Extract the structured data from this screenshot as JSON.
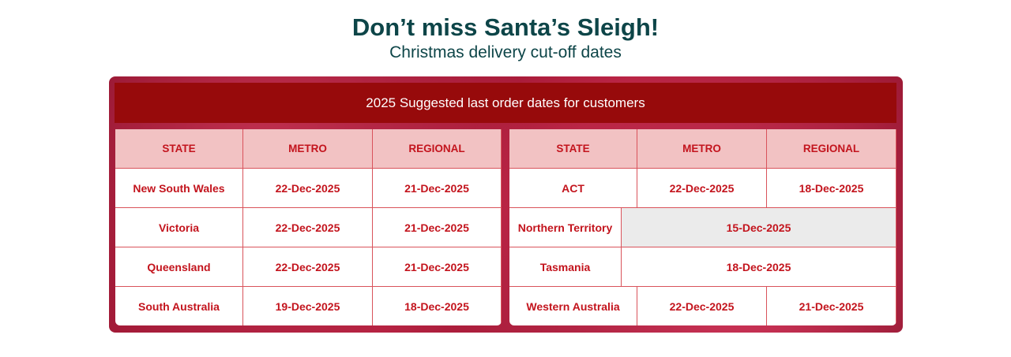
{
  "title": "Don’t miss Santa’s Sleigh!",
  "subtitle": "Christmas delivery cut-off dates",
  "banner": "2025 Suggested last order dates for customers",
  "headers": [
    "STATE",
    "METRO",
    "REGIONAL"
  ],
  "left_rows": [
    [
      "New South Wales",
      "22-Dec-2025",
      "21-Dec-2025"
    ],
    [
      "Victoria",
      "22-Dec-2025",
      "21-Dec-2025"
    ],
    [
      "Queensland",
      "22-Dec-2025",
      "21-Dec-2025"
    ],
    [
      "South Australia",
      "19-Dec-2025",
      "18-Dec-2025"
    ]
  ],
  "right_rows": [
    [
      "ACT",
      "22-Dec-2025",
      "18-Dec-2025"
    ],
    [
      "Northern Territory",
      "15-Dec-2025"
    ],
    [
      "Tasmania",
      "18-Dec-2025"
    ],
    [
      "Western Australia",
      "22-Dec-2025",
      "21-Dec-2025"
    ]
  ],
  "colors": {
    "title": "#0d4548",
    "banner": "#970a0b",
    "text": "#c3141d",
    "header_bg": "#f2c2c3",
    "highlight_bg": "#ebebeb"
  }
}
